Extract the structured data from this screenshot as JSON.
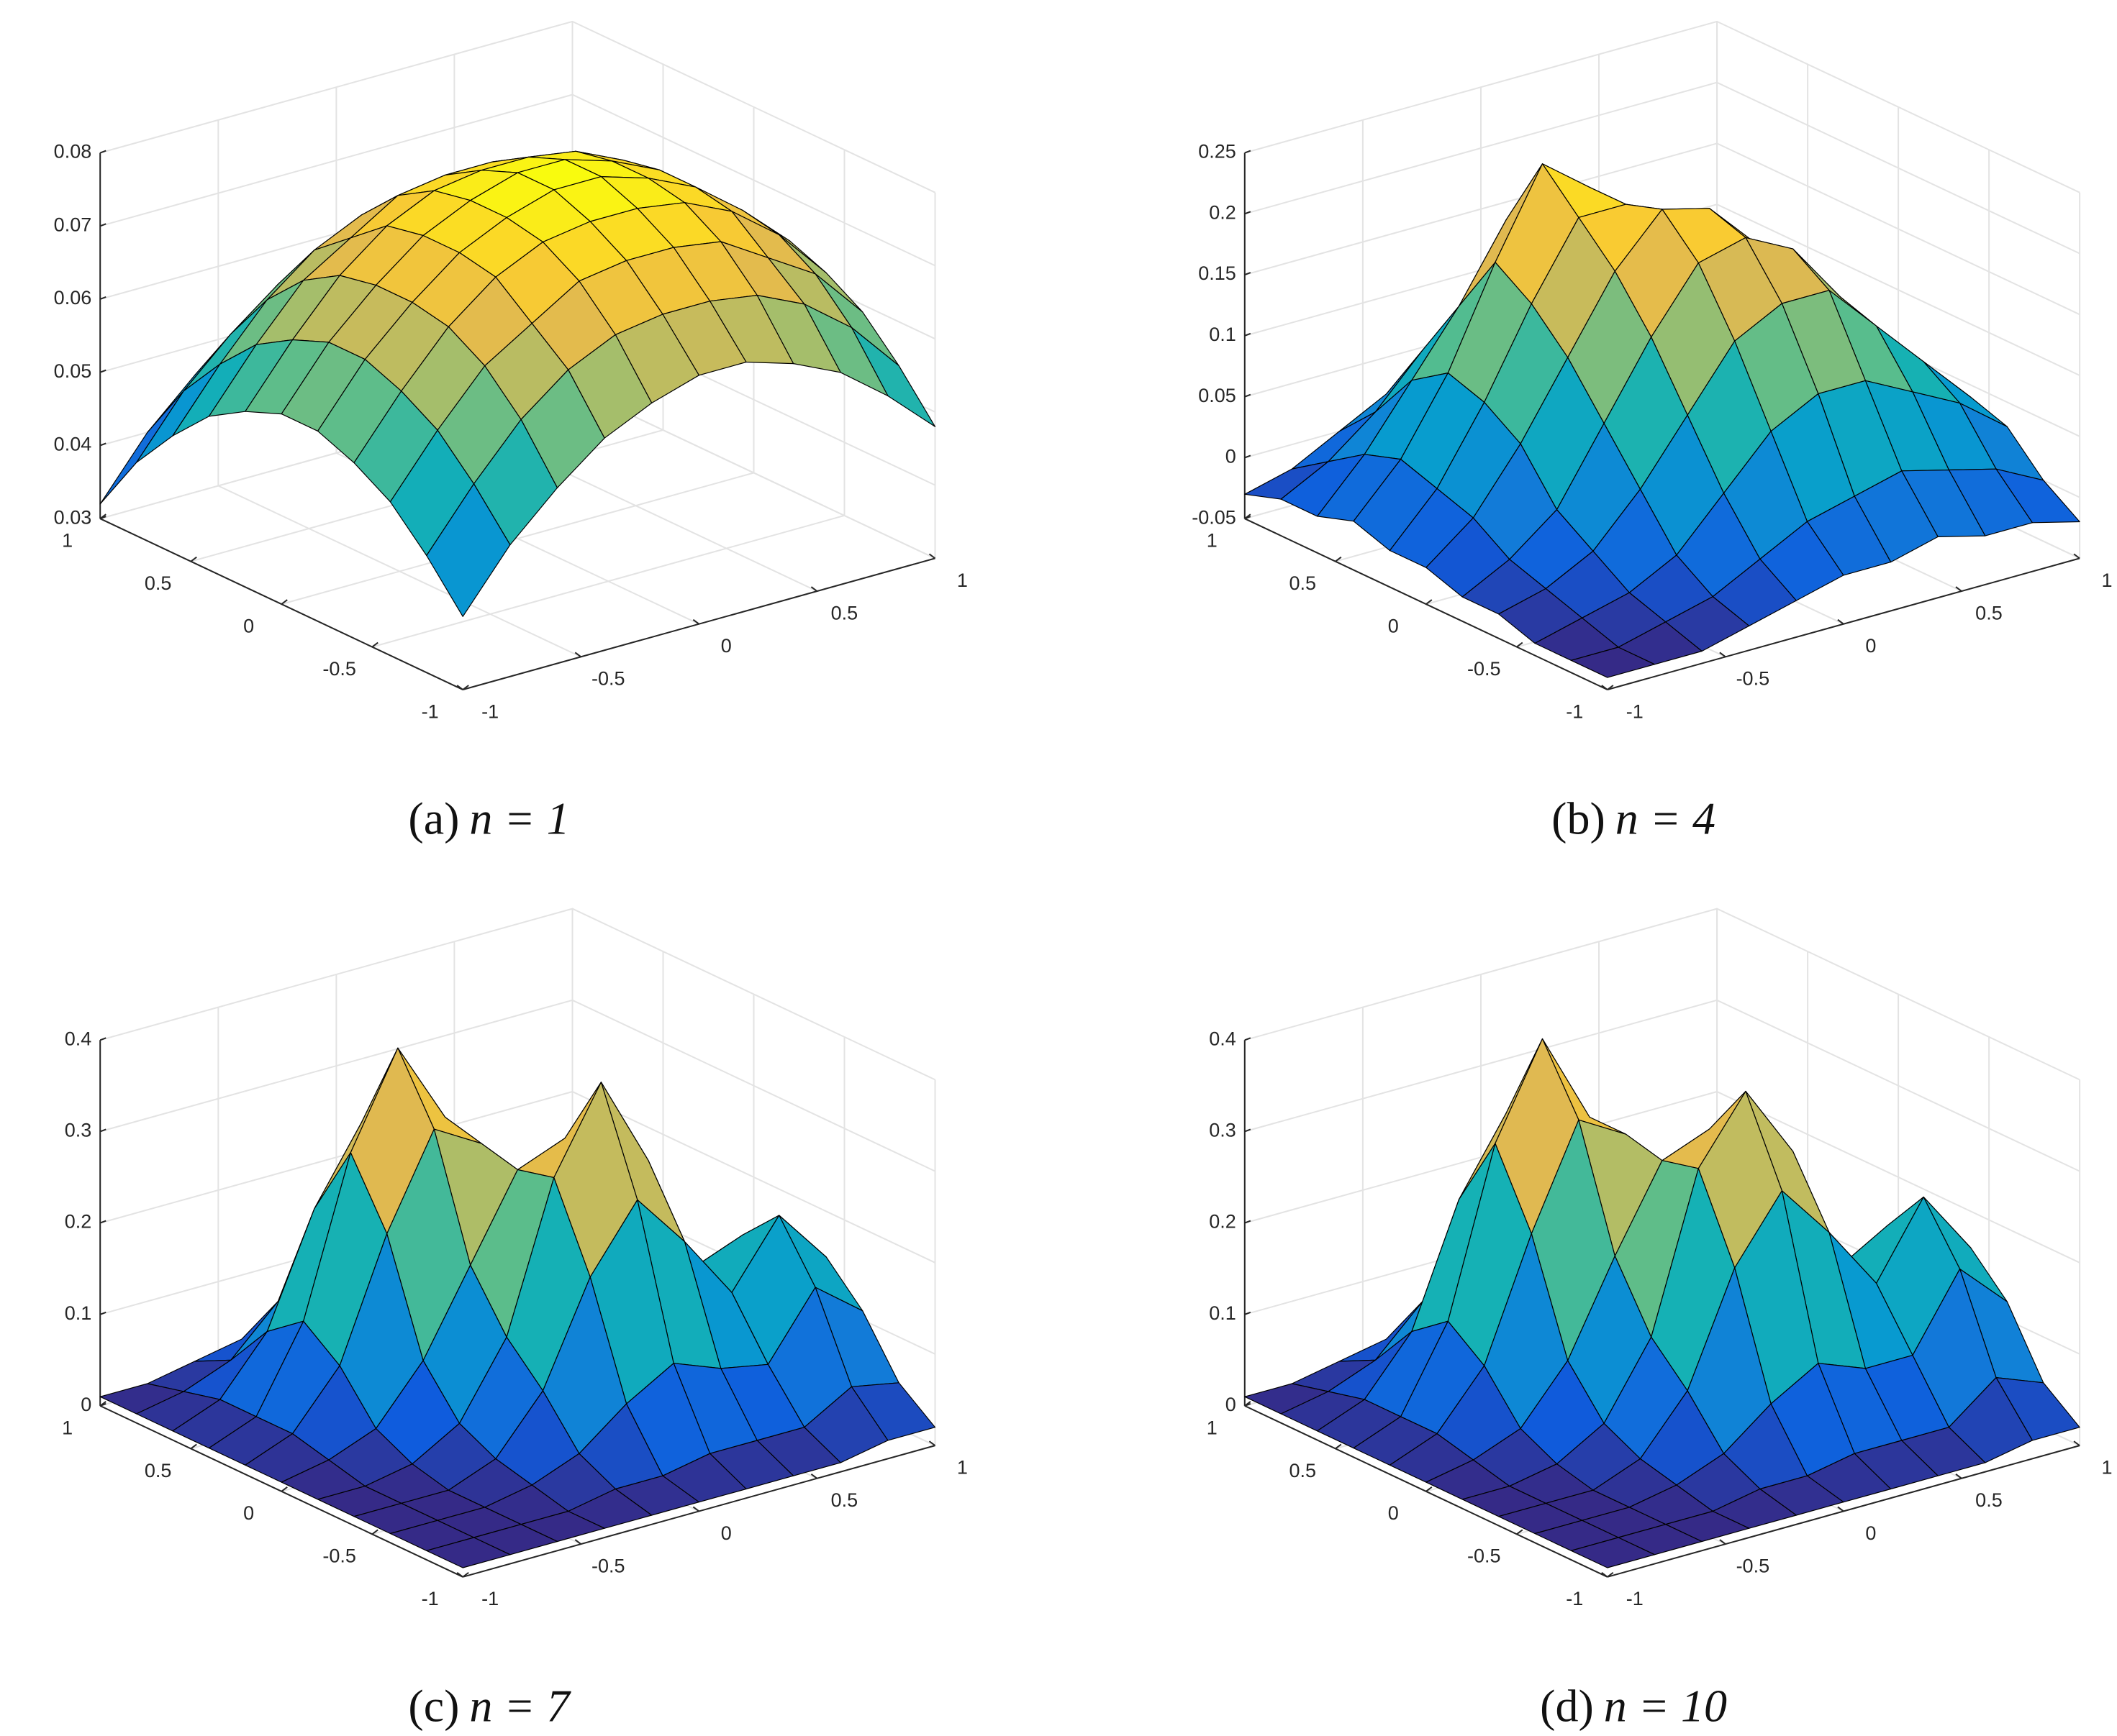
{
  "chart_data": [
    {
      "type": "surface",
      "colormap": "parula",
      "grid": true,
      "caption": {
        "tag": "(a)",
        "equation": "n = 1"
      },
      "xlim": [
        -1,
        1
      ],
      "ylim": [
        -1,
        1
      ],
      "zlim": [
        0.03,
        0.08
      ],
      "xticks": [
        -1,
        -0.5,
        0,
        0.5,
        1
      ],
      "yticks": [
        -1,
        -0.5,
        0,
        0.5,
        1
      ],
      "zticks": [
        0.03,
        0.04,
        0.05,
        0.06,
        0.07,
        0.08
      ],
      "x": [
        -1,
        -0.8,
        -0.6,
        -0.4,
        -0.2,
        0,
        0.2,
        0.4,
        0.6,
        0.8,
        1
      ],
      "y": [
        -1,
        -0.8,
        -0.6,
        -0.4,
        -0.2,
        0,
        0.2,
        0.4,
        0.6,
        0.8,
        1
      ],
      "z": [
        [
          0.04,
          0.048,
          0.054,
          0.059,
          0.062,
          0.064,
          0.064,
          0.062,
          0.059,
          0.054,
          0.048
        ],
        [
          0.046,
          0.054,
          0.061,
          0.066,
          0.069,
          0.07,
          0.07,
          0.069,
          0.066,
          0.061,
          0.054
        ],
        [
          0.051,
          0.059,
          0.066,
          0.07,
          0.074,
          0.075,
          0.075,
          0.074,
          0.07,
          0.066,
          0.059
        ],
        [
          0.054,
          0.062,
          0.069,
          0.074,
          0.077,
          0.078,
          0.078,
          0.077,
          0.074,
          0.069,
          0.062
        ],
        [
          0.056,
          0.064,
          0.07,
          0.075,
          0.078,
          0.08,
          0.08,
          0.078,
          0.075,
          0.07,
          0.064
        ],
        [
          0.056,
          0.064,
          0.07,
          0.075,
          0.078,
          0.08,
          0.08,
          0.078,
          0.075,
          0.07,
          0.064
        ],
        [
          0.054,
          0.062,
          0.069,
          0.074,
          0.077,
          0.078,
          0.078,
          0.077,
          0.074,
          0.069,
          0.062
        ],
        [
          0.051,
          0.059,
          0.066,
          0.07,
          0.074,
          0.075,
          0.075,
          0.074,
          0.07,
          0.066,
          0.059
        ],
        [
          0.046,
          0.054,
          0.061,
          0.066,
          0.069,
          0.07,
          0.07,
          0.069,
          0.066,
          0.061,
          0.054
        ],
        [
          0.04,
          0.048,
          0.054,
          0.059,
          0.062,
          0.064,
          0.064,
          0.062,
          0.059,
          0.054,
          0.048
        ],
        [
          0.032,
          0.04,
          0.046,
          0.051,
          0.054,
          0.056,
          0.056,
          0.054,
          0.051,
          0.046,
          0.04
        ]
      ]
    },
    {
      "type": "surface",
      "colormap": "parula",
      "grid": true,
      "caption": {
        "tag": "(b)",
        "equation": "n = 4"
      },
      "xlim": [
        -1,
        1
      ],
      "ylim": [
        -1,
        1
      ],
      "zlim": [
        -0.05,
        0.25
      ],
      "xticks": [
        -1,
        -0.5,
        0,
        0.5,
        1
      ],
      "yticks": [
        -1,
        -0.5,
        0,
        0.5,
        1
      ],
      "zticks": [
        -0.05,
        0,
        0.05,
        0.1,
        0.15,
        0.2,
        0.25
      ],
      "x": [
        -1,
        -0.8,
        -0.6,
        -0.4,
        -0.2,
        0,
        0.2,
        0.4,
        0.6,
        0.8,
        1
      ],
      "y": [
        -1,
        -0.8,
        -0.6,
        -0.4,
        -0.2,
        0,
        0.2,
        0.4,
        0.6,
        0.8,
        1
      ],
      "z": [
        [
          -0.04,
          -0.04,
          -0.04,
          -0.03,
          -0.02,
          -0.01,
          -0.01,
          0,
          -0.01,
          -0.01,
          -0.02
        ],
        [
          -0.04,
          -0.04,
          -0.03,
          -0.02,
          0,
          0.02,
          0.03,
          0.04,
          0.03,
          0.02,
          0
        ],
        [
          -0.04,
          -0.03,
          -0.02,
          0,
          0.04,
          0.08,
          0.1,
          0.1,
          0.08,
          0.06,
          0.03
        ],
        [
          -0.03,
          -0.02,
          0,
          0.04,
          0.09,
          0.14,
          0.16,
          0.16,
          0.12,
          0.08,
          0.04
        ],
        [
          -0.03,
          -0.01,
          0.02,
          0.08,
          0.14,
          0.19,
          0.2,
          0.18,
          0.13,
          0.08,
          0.04
        ],
        [
          -0.02,
          0.01,
          0.06,
          0.12,
          0.18,
          0.22,
          0.21,
          0.17,
          0.11,
          0.06,
          0.02
        ],
        [
          -0.02,
          0.02,
          0.08,
          0.15,
          0.21,
          0.21,
          0.19,
          0.13,
          0.07,
          0.03,
          0
        ],
        [
          -0.01,
          0.03,
          0.09,
          0.17,
          0.24,
          0.21,
          0.14,
          0.08,
          0.03,
          0,
          -0.02
        ],
        [
          -0.02,
          0.02,
          0.07,
          0.12,
          0.18,
          0.13,
          0.09,
          0.04,
          0,
          -0.02,
          -0.03
        ],
        [
          -0.02,
          0,
          0.03,
          0.07,
          0.08,
          0.07,
          0.04,
          0.01,
          -0.02,
          -0.03,
          -0.04
        ],
        [
          -0.03,
          -0.02,
          0,
          0.02,
          0.02,
          0.02,
          0,
          -0.02,
          -0.03,
          -0.04,
          -0.04
        ]
      ]
    },
    {
      "type": "surface",
      "colormap": "parula",
      "grid": true,
      "caption": {
        "tag": "(c)",
        "equation": "n = 7"
      },
      "xlim": [
        -1,
        1
      ],
      "ylim": [
        -1,
        1
      ],
      "zlim": [
        0,
        0.4
      ],
      "xticks": [
        -1,
        -0.5,
        0,
        0.5,
        1
      ],
      "yticks": [
        -1,
        -0.5,
        0,
        0.5,
        1
      ],
      "zticks": [
        0,
        0.1,
        0.2,
        0.3,
        0.4
      ],
      "x": [
        -1,
        -0.8,
        -0.6,
        -0.4,
        -0.2,
        0,
        0.2,
        0.4,
        0.6,
        0.8,
        1
      ],
      "y": [
        -1,
        -0.8,
        -0.6,
        -0.4,
        -0.2,
        0,
        0.2,
        0.4,
        0.6,
        0.8,
        1
      ],
      "z": [
        [
          0.01,
          0.01,
          0.01,
          0.01,
          0.01,
          0.01,
          0.01,
          0.01,
          0.01,
          0.02,
          0.02
        ],
        [
          0.01,
          0.01,
          0.01,
          0.01,
          0.02,
          0.02,
          0.03,
          0.03,
          0.03,
          0.06,
          0.05
        ],
        [
          0.01,
          0.01,
          0.01,
          0.02,
          0.04,
          0.08,
          0.11,
          0.09,
          0.08,
          0.15,
          0.11
        ],
        [
          0.01,
          0.01,
          0.01,
          0.03,
          0.09,
          0.2,
          0.27,
          0.21,
          0.14,
          0.21,
          0.15
        ],
        [
          0.01,
          0.01,
          0.02,
          0.05,
          0.13,
          0.29,
          0.38,
          0.28,
          0.15,
          0.17,
          0.11
        ],
        [
          0.01,
          0.02,
          0.04,
          0.1,
          0.19,
          0.28,
          0.3,
          0.21,
          0.1,
          0.08,
          0.05
        ],
        [
          0.01,
          0.03,
          0.09,
          0.22,
          0.32,
          0.29,
          0.19,
          0.1,
          0.04,
          0.03,
          0.02
        ],
        [
          0.01,
          0.03,
          0.12,
          0.29,
          0.39,
          0.3,
          0.14,
          0.05,
          0.02,
          0.01,
          0.01
        ],
        [
          0.01,
          0.03,
          0.09,
          0.21,
          0.29,
          0.21,
          0.09,
          0.03,
          0.01,
          0.01,
          0.01
        ],
        [
          0.01,
          0.02,
          0.04,
          0.09,
          0.12,
          0.09,
          0.04,
          0.02,
          0.01,
          0.01,
          0.01
        ],
        [
          0.01,
          0.01,
          0.02,
          0.03,
          0.03,
          0.03,
          0.02,
          0.01,
          0.01,
          0.01,
          0.01
        ]
      ]
    },
    {
      "type": "surface",
      "colormap": "parula",
      "grid": true,
      "caption": {
        "tag": "(d)",
        "equation": "n = 10"
      },
      "xlim": [
        -1,
        1
      ],
      "ylim": [
        -1,
        1
      ],
      "zlim": [
        0,
        0.4
      ],
      "xticks": [
        -1,
        -0.5,
        0,
        0.5,
        1
      ],
      "yticks": [
        -1,
        -0.5,
        0,
        0.5,
        1
      ],
      "zticks": [
        0,
        0.1,
        0.2,
        0.3,
        0.4
      ],
      "x": [
        -1,
        -0.8,
        -0.6,
        -0.4,
        -0.2,
        0,
        0.2,
        0.4,
        0.6,
        0.8,
        1
      ],
      "y": [
        -1,
        -0.8,
        -0.6,
        -0.4,
        -0.2,
        0,
        0.2,
        0.4,
        0.6,
        0.8,
        1
      ],
      "z": [
        [
          0.01,
          0.01,
          0.01,
          0.01,
          0.01,
          0.01,
          0.01,
          0.01,
          0.01,
          0.02,
          0.02
        ],
        [
          0.01,
          0.01,
          0.01,
          0.01,
          0.02,
          0.02,
          0.03,
          0.03,
          0.03,
          0.07,
          0.05
        ],
        [
          0.01,
          0.01,
          0.01,
          0.02,
          0.04,
          0.08,
          0.11,
          0.09,
          0.09,
          0.17,
          0.12
        ],
        [
          0.01,
          0.01,
          0.01,
          0.03,
          0.09,
          0.21,
          0.28,
          0.22,
          0.15,
          0.23,
          0.16
        ],
        [
          0.01,
          0.01,
          0.02,
          0.05,
          0.13,
          0.3,
          0.37,
          0.29,
          0.15,
          0.18,
          0.12
        ],
        [
          0.01,
          0.02,
          0.04,
          0.1,
          0.2,
          0.29,
          0.31,
          0.21,
          0.1,
          0.08,
          0.05
        ],
        [
          0.01,
          0.03,
          0.09,
          0.22,
          0.33,
          0.3,
          0.19,
          0.1,
          0.04,
          0.03,
          0.02
        ],
        [
          0.01,
          0.03,
          0.12,
          0.3,
          0.4,
          0.3,
          0.14,
          0.05,
          0.02,
          0.01,
          0.01
        ],
        [
          0.01,
          0.03,
          0.09,
          0.22,
          0.3,
          0.22,
          0.09,
          0.03,
          0.01,
          0.01,
          0.01
        ],
        [
          0.01,
          0.02,
          0.04,
          0.09,
          0.12,
          0.09,
          0.04,
          0.02,
          0.01,
          0.01,
          0.01
        ],
        [
          0.01,
          0.01,
          0.02,
          0.03,
          0.03,
          0.03,
          0.02,
          0.01,
          0.01,
          0.01,
          0.01
        ]
      ]
    }
  ]
}
